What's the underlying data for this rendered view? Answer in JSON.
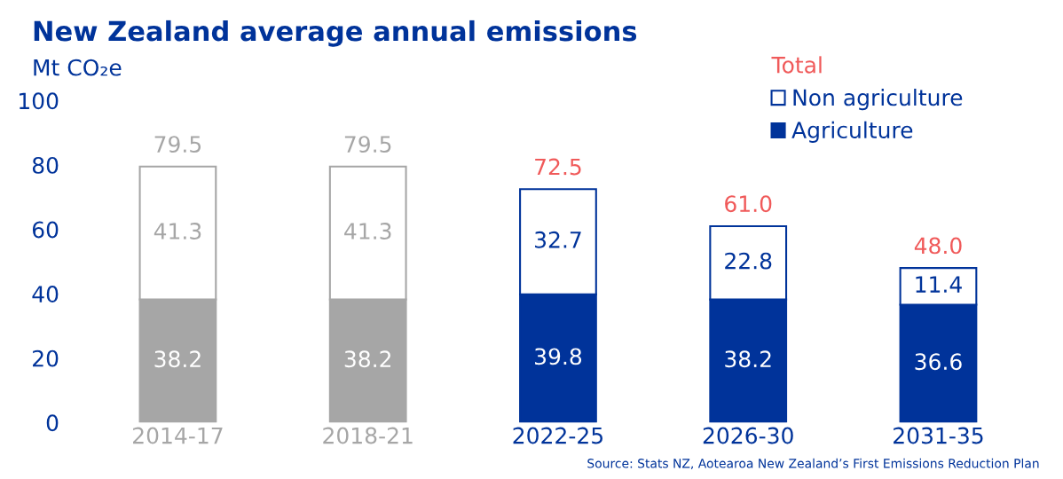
{
  "chart_data": {
    "type": "bar",
    "title": "New Zealand average annual emissions",
    "ylabel": "Mt CO₂e",
    "categories": [
      "2014-17",
      "2018-21",
      "2022-25",
      "2026-30",
      "2031-35"
    ],
    "stacked": true,
    "series": [
      {
        "name": "Agriculture",
        "color": "#00339a",
        "colors": [
          "#a6a6a6",
          "#a6a6a6",
          "#00339a",
          "#00339a",
          "#00339a"
        ],
        "values": [
          38.2,
          38.2,
          39.8,
          38.2,
          36.6
        ]
      },
      {
        "name": "Non agriculture",
        "color": "#ffffff",
        "colors": [
          "#ffffff",
          "#ffffff",
          "#ffffff",
          "#ffffff",
          "#ffffff"
        ],
        "values": [
          41.3,
          41.3,
          32.7,
          22.8,
          11.4
        ]
      }
    ],
    "totals": [
      "79.5",
      "79.5",
      "72.5",
      "61.0",
      "48.0"
    ],
    "data_labels": true,
    "ylim": [
      0,
      100
    ],
    "yticks": [
      0,
      20,
      40,
      60,
      80,
      100
    ],
    "grid": false,
    "legend": "top right",
    "legend_title": "Total",
    "annotations": [
      "Source: Stats NZ, Aotearoa New Zealand’s First Emissions Reduction Plan"
    ]
  }
}
